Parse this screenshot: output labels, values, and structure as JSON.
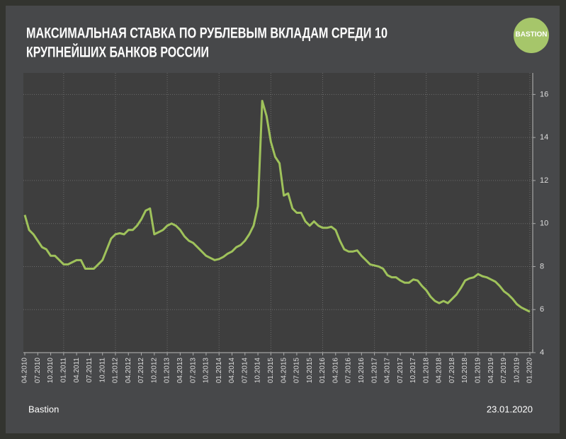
{
  "chart_data": {
    "type": "line",
    "title": [
      "МАКСИМАЛЬНАЯ СТАВКА ПО РУБЛЕВЫМ ВКЛАДАМ СРЕДИ 10",
      "КРУПНЕЙШИХ БАНКОВ РОССИИ"
    ],
    "logo": "BASTION",
    "source": "Bastion",
    "date": "23.01.2020",
    "categories": [
      "04.2010",
      null,
      null,
      "07.2010",
      null,
      null,
      "10.2010",
      null,
      null,
      "01.2011",
      null,
      null,
      "04.2011",
      null,
      null,
      "07.2011",
      null,
      null,
      "10.2011",
      null,
      null,
      "01.2012",
      null,
      null,
      "04.2012",
      null,
      null,
      "07.2012",
      null,
      null,
      "10.2012",
      null,
      null,
      "01.2013",
      null,
      null,
      "04.2013",
      null,
      null,
      "07.2013",
      null,
      null,
      "10.2013",
      null,
      null,
      "01.2014",
      null,
      null,
      "04.2014",
      null,
      null,
      "07.2014",
      null,
      null,
      "10.2014",
      null,
      null,
      "01.2015",
      null,
      null,
      "04.2015",
      null,
      null,
      "07.2015",
      null,
      null,
      "10.2015",
      null,
      null,
      "01.2016",
      null,
      null,
      "04.2016",
      null,
      null,
      "07.2016",
      null,
      null,
      "10.2016",
      null,
      null,
      "01.2017",
      null,
      null,
      "04.2017",
      null,
      null,
      "07.2017",
      null,
      null,
      "10.2017",
      null,
      null,
      "01.2018",
      null,
      null,
      "04.2018",
      null,
      null,
      "07.2018",
      null,
      null,
      "10.2018",
      null,
      null,
      "01.2019",
      null,
      null,
      "04.2019",
      null,
      null,
      "07.2019",
      null,
      null,
      "10.2019",
      null,
      null,
      "01.2020"
    ],
    "series": [
      {
        "color": "#9fc25b",
        "values": [
          10.4,
          9.7,
          9.5,
          9.2,
          8.9,
          8.8,
          8.5,
          8.5,
          8.3,
          8.1,
          8.1,
          8.2,
          8.3,
          8.3,
          7.9,
          7.9,
          7.9,
          8.1,
          8.3,
          8.8,
          9.3,
          9.5,
          9.55,
          9.5,
          9.7,
          9.7,
          9.9,
          10.2,
          10.6,
          10.7,
          9.5,
          9.6,
          9.7,
          9.9,
          10.0,
          9.9,
          9.7,
          9.4,
          9.2,
          9.1,
          8.9,
          8.7,
          8.5,
          8.4,
          8.3,
          8.35,
          8.45,
          8.6,
          8.7,
          8.9,
          9.0,
          9.2,
          9.5,
          9.9,
          10.8,
          15.7,
          15.0,
          13.8,
          13.1,
          12.8,
          11.3,
          11.4,
          10.7,
          10.5,
          10.5,
          10.1,
          9.9,
          10.1,
          9.9,
          9.8,
          9.8,
          9.85,
          9.7,
          9.2,
          8.8,
          8.7,
          8.7,
          8.75,
          8.5,
          8.3,
          8.1,
          8.05,
          8.0,
          7.9,
          7.6,
          7.5,
          7.5,
          7.35,
          7.25,
          7.25,
          7.4,
          7.35,
          7.1,
          6.9,
          6.6,
          6.4,
          6.3,
          6.4,
          6.3,
          6.5,
          6.7,
          7.0,
          7.35,
          7.45,
          7.5,
          7.65,
          7.55,
          7.5,
          7.4,
          7.3,
          7.1,
          6.85,
          6.7,
          6.5,
          6.25,
          6.1,
          6.0,
          5.9
        ]
      }
    ],
    "ylim": [
      4,
      17
    ],
    "yticks": [
      4,
      6,
      8,
      10,
      12,
      14,
      16
    ],
    "grid": true
  }
}
